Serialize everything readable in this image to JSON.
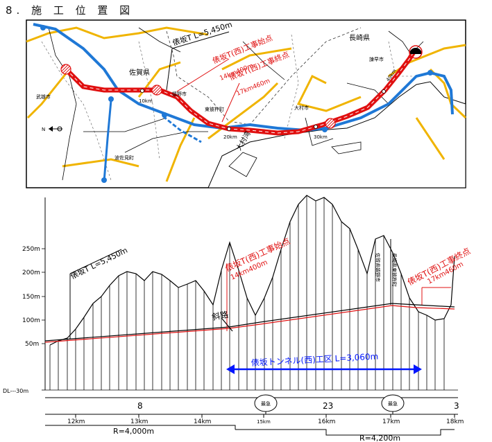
{
  "title": "8. 施 工 位 置 図",
  "map": {
    "tunnel_total": "俵坂T L=5,450m",
    "start_label": "俵坂T(西)工事始点",
    "start_km": "14km400m",
    "end_label": "俵坂T(西)工事終点",
    "end_km": "17km460m",
    "prefecture_saga": "佐賀県",
    "prefecture_nagasaki": "長崎県",
    "city_takeo": "武雄市",
    "city_ureshino": "嬉野市",
    "town_hasami": "波佐見町",
    "town_higashisonogi": "東彼杵町",
    "city_omura": "大村市",
    "city_isahaya": "諫早市",
    "bay": "大村湾",
    "km_10": "10km",
    "km_20": "20km",
    "km_30": "30km",
    "km_40": "40km",
    "north": "N"
  },
  "profile": {
    "tunnel_total": "俵坂T L=5,450m",
    "start_label": "俵坂T(西)工事始点",
    "start_km": "14km400m",
    "end_label": "俵坂T(西)工事終点",
    "end_km": "17km460m",
    "section_label": "俵坂トンネル(西)工区 L=3,060m",
    "shaft_label": "斜路",
    "border_saga": "佐賀県嬉野市",
    "border_nagasaki": "長崎県東彼杵町",
    "y_ticks": [
      "250m",
      "200m",
      "150m",
      "100m",
      "50m",
      "DL---30m"
    ],
    "gradients": [
      "8",
      "23",
      "3"
    ],
    "bubble1": "最急",
    "bubble2": "最急",
    "km_ticks": [
      "12km",
      "13km",
      "14km",
      "15km",
      "16km",
      "17km",
      "18km"
    ],
    "radius1": "R=4,000m",
    "radius2": "R=4,200m"
  }
}
